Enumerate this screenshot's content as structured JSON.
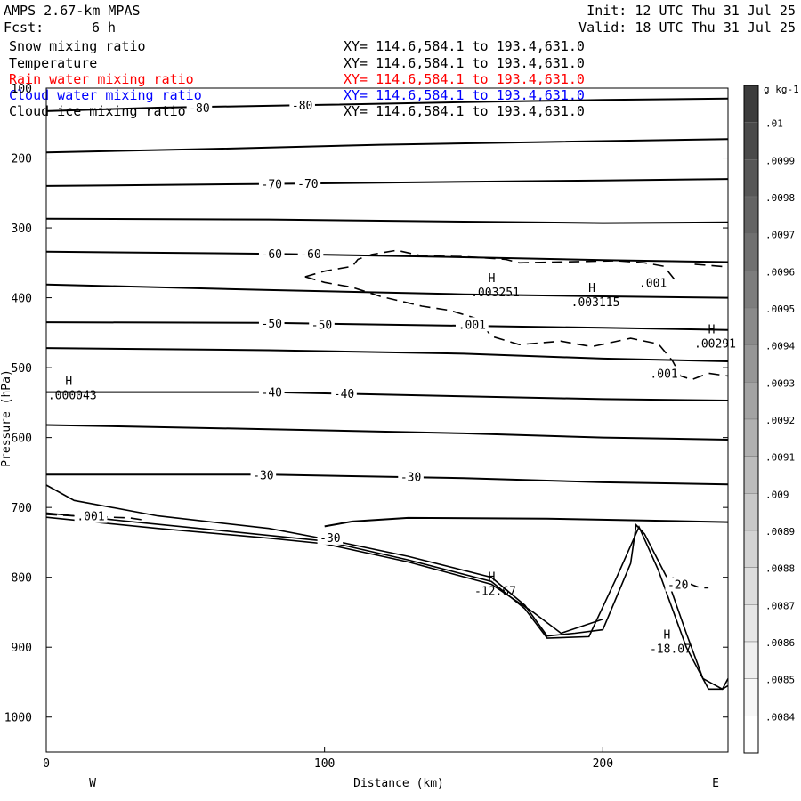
{
  "header": {
    "model": "AMPS 2.67-km MPAS",
    "fcst_label": "Fcst:",
    "fcst_value": "6 h",
    "init": "Init: 12 UTC Thu 31 Jul 25",
    "valid": "Valid: 18 UTC Thu 31 Jul 25"
  },
  "fields": [
    {
      "name": "Snow mixing ratio",
      "xy": "XY= 114.6,584.1 to 193.4,631.0",
      "color": "#000000"
    },
    {
      "name": "Temperature",
      "xy": "XY= 114.6,584.1 to 193.4,631.0",
      "color": "#000000"
    },
    {
      "name": "Rain water mixing ratio",
      "xy": "XY= 114.6,584.1 to 193.4,631.0",
      "color": "#ff0000"
    },
    {
      "name": "Cloud water mixing ratio",
      "xy": "XY= 114.6,584.1 to 193.4,631.0",
      "color": "#0000ff"
    },
    {
      "name": "Cloud ice mixing ratio",
      "xy": "XY= 114.6,584.1 to 193.4,631.0",
      "color": "#000000"
    }
  ],
  "chart_data": {
    "type": "line",
    "xlabel": "Distance (km)",
    "ylabel": "Pressure (hPa)",
    "xlim": [
      0,
      245
    ],
    "ylim": [
      100,
      1050
    ],
    "xticks": [
      0,
      100,
      200
    ],
    "yticks": [
      100,
      200,
      300,
      400,
      500,
      600,
      700,
      800,
      900,
      1000
    ],
    "x_end_labels": {
      "left": "W",
      "right": "E"
    },
    "colorbar": {
      "unit": "g kg-1",
      "labels": [
        ".01",
        ".0099",
        ".0098",
        ".0097",
        ".0096",
        ".0095",
        ".0094",
        ".0093",
        ".0092",
        ".0091",
        ".009",
        ".0089",
        ".0088",
        ".0087",
        ".0086",
        ".0085",
        ".0084"
      ],
      "colors": [
        "#3c3c3c",
        "#4a4a4a",
        "#575757",
        "#646464",
        "#707070",
        "#7d7d7d",
        "#8a8a8a",
        "#969696",
        "#a3a3a3",
        "#b0b0b0",
        "#bcbcbc",
        "#c8c8c8",
        "#d3d3d3",
        "#dddddd",
        "#e6e6e6",
        "#efefef",
        "#f7f7f7",
        "#ffffff"
      ]
    },
    "temperature_isotherms": [
      {
        "value": -80,
        "points": [
          [
            0,
            133
          ],
          [
            40,
            128
          ],
          [
            100,
            124
          ],
          [
            150,
            120
          ],
          [
            200,
            117
          ],
          [
            245,
            115
          ]
        ]
      },
      {
        "value": null,
        "points": [
          [
            0,
            192
          ],
          [
            60,
            187
          ],
          [
            120,
            181
          ],
          [
            180,
            177
          ],
          [
            245,
            173
          ]
        ]
      },
      {
        "value": -70,
        "points": [
          [
            0,
            240
          ],
          [
            80,
            237
          ],
          [
            150,
            234
          ],
          [
            200,
            232
          ],
          [
            245,
            230
          ]
        ]
      },
      {
        "value": null,
        "points": [
          [
            0,
            287
          ],
          [
            80,
            288
          ],
          [
            150,
            291
          ],
          [
            200,
            293
          ],
          [
            245,
            292
          ]
        ]
      },
      {
        "value": -60,
        "points": [
          [
            0,
            334
          ],
          [
            80,
            337
          ],
          [
            150,
            342
          ],
          [
            200,
            346
          ],
          [
            245,
            349
          ]
        ]
      },
      {
        "value": null,
        "points": [
          [
            0,
            381
          ],
          [
            80,
            389
          ],
          [
            150,
            395
          ],
          [
            200,
            398
          ],
          [
            245,
            400
          ]
        ]
      },
      {
        "value": -50,
        "points": [
          [
            0,
            435
          ],
          [
            80,
            436
          ],
          [
            150,
            440
          ],
          [
            200,
            443
          ],
          [
            245,
            446
          ]
        ]
      },
      {
        "value": null,
        "points": [
          [
            0,
            472
          ],
          [
            80,
            475
          ],
          [
            150,
            480
          ],
          [
            200,
            487
          ],
          [
            245,
            491
          ]
        ]
      },
      {
        "value": -40,
        "points": [
          [
            0,
            535
          ],
          [
            80,
            535
          ],
          [
            150,
            541
          ],
          [
            200,
            545
          ],
          [
            245,
            547
          ]
        ]
      },
      {
        "value": null,
        "points": [
          [
            0,
            582
          ],
          [
            80,
            588
          ],
          [
            150,
            594
          ],
          [
            200,
            600
          ],
          [
            245,
            603
          ]
        ]
      },
      {
        "value": -30,
        "points": [
          [
            0,
            653
          ],
          [
            80,
            653
          ],
          [
            150,
            658
          ],
          [
            200,
            664
          ],
          [
            245,
            667
          ]
        ]
      }
    ],
    "other_contours": [
      {
        "value": null,
        "points": [
          [
            100,
            727
          ],
          [
            110,
            720
          ],
          [
            130,
            715
          ],
          [
            180,
            716
          ],
          [
            245,
            721
          ]
        ]
      }
    ],
    "terrain_lines": [
      {
        "points": [
          [
            0,
            668
          ],
          [
            10,
            690
          ],
          [
            40,
            712
          ],
          [
            80,
            730
          ],
          [
            100,
            745
          ],
          [
            130,
            770
          ],
          [
            160,
            800
          ],
          [
            172,
            840
          ],
          [
            180,
            884
          ],
          [
            190,
            880
          ],
          [
            200,
            875
          ],
          [
            210,
            780
          ],
          [
            212,
            725
          ],
          [
            215,
            738
          ],
          [
            223,
            800
          ],
          [
            230,
            880
          ],
          [
            236,
            945
          ],
          [
            243,
            960
          ],
          [
            245,
            955
          ]
        ]
      },
      {
        "points": [
          [
            0,
            708
          ],
          [
            30,
            720
          ],
          [
            70,
            736
          ],
          [
            100,
            748
          ],
          [
            130,
            775
          ],
          [
            160,
            806
          ],
          [
            172,
            845
          ],
          [
            180,
            887
          ],
          [
            195,
            885
          ],
          [
            205,
            800
          ],
          [
            213,
            728
          ],
          [
            220,
            790
          ],
          [
            230,
            900
          ],
          [
            238,
            960
          ],
          [
            243,
            960
          ],
          [
            245,
            945
          ]
        ]
      },
      {
        "points": [
          [
            0,
            714
          ],
          [
            40,
            730
          ],
          [
            80,
            744
          ],
          [
            100,
            752
          ],
          [
            130,
            778
          ],
          [
            160,
            810
          ],
          [
            175,
            850
          ],
          [
            185,
            880
          ],
          [
            200,
            860
          ]
        ]
      }
    ],
    "dashed_contours": [
      {
        "value": 0.001,
        "points": [
          [
            93,
            370
          ],
          [
            100,
            362
          ],
          [
            110,
            355
          ],
          [
            112,
            345
          ],
          [
            117,
            338
          ],
          [
            126,
            332
          ],
          [
            135,
            340
          ],
          [
            150,
            341
          ],
          [
            165,
            345
          ],
          [
            170,
            350
          ],
          [
            195,
            348
          ],
          [
            205,
            347
          ],
          [
            215,
            350
          ],
          [
            222,
            355
          ],
          [
            226,
            375
          ]
        ]
      },
      {
        "value": 0.001,
        "points": [
          [
            93,
            370
          ],
          [
            100,
            378
          ],
          [
            110,
            385
          ],
          [
            120,
            398
          ],
          [
            135,
            412
          ],
          [
            145,
            418
          ],
          [
            155,
            430
          ],
          [
            160,
            455
          ],
          [
            170,
            467
          ],
          [
            185,
            462
          ],
          [
            196,
            470
          ],
          [
            210,
            458
          ],
          [
            220,
            466
          ],
          [
            225,
            490
          ],
          [
            228,
            512
          ],
          [
            232,
            517
          ],
          [
            238,
            508
          ],
          [
            245,
            512
          ]
        ]
      },
      {
        "value": 0.001,
        "points": [
          [
            233,
            352
          ],
          [
            245,
            356
          ]
        ]
      },
      {
        "value": 0.001,
        "points": [
          [
            0,
            710
          ],
          [
            10,
            712
          ],
          [
            30,
            715
          ],
          [
            35,
            718
          ]
        ]
      },
      {
        "value": -20,
        "points": [
          [
            225,
            800
          ],
          [
            235,
            815
          ],
          [
            238,
            815
          ]
        ]
      }
    ],
    "maxima": [
      {
        "label": "H",
        "value": ".003251",
        "x": 162,
        "p": 383
      },
      {
        "label": "H",
        "value": ".003115",
        "x": 198,
        "p": 397
      },
      {
        "label": "H",
        "value": ".00291",
        "x": 241,
        "p": 456
      },
      {
        "label": "H",
        "value": ".000043",
        "x": 10,
        "p": 530
      },
      {
        "label": "H",
        "value": "-12.67",
        "x": 162,
        "p": 810
      },
      {
        "label": "H",
        "value": "-18.07",
        "x": 225,
        "p": 893
      }
    ],
    "contour_labels": [
      {
        "text": "-80",
        "x": 55,
        "p": 128
      },
      {
        "text": "-80",
        "x": 92,
        "p": 124
      },
      {
        "text": "-70",
        "x": 81,
        "p": 237
      },
      {
        "text": "-70",
        "x": 94,
        "p": 236
      },
      {
        "text": "-60",
        "x": 81,
        "p": 337
      },
      {
        "text": "-60",
        "x": 95,
        "p": 337
      },
      {
        "text": "-50",
        "x": 81,
        "p": 436
      },
      {
        "text": "-50",
        "x": 99,
        "p": 438
      },
      {
        "text": "-40",
        "x": 81,
        "p": 535
      },
      {
        "text": "-40",
        "x": 107,
        "p": 537
      },
      {
        "text": "-30",
        "x": 78,
        "p": 653
      },
      {
        "text": "-30",
        "x": 131,
        "p": 656
      },
      {
        "text": "-30",
        "x": 102,
        "p": 743
      },
      {
        "text": "-20",
        "x": 227,
        "p": 810
      },
      {
        "text": ".001",
        "x": 153,
        "p": 438
      },
      {
        "text": ".001",
        "x": 218,
        "p": 378
      },
      {
        "text": ".001",
        "x": 222,
        "p": 508
      },
      {
        "text": ".001",
        "x": 16,
        "p": 712
      }
    ]
  }
}
